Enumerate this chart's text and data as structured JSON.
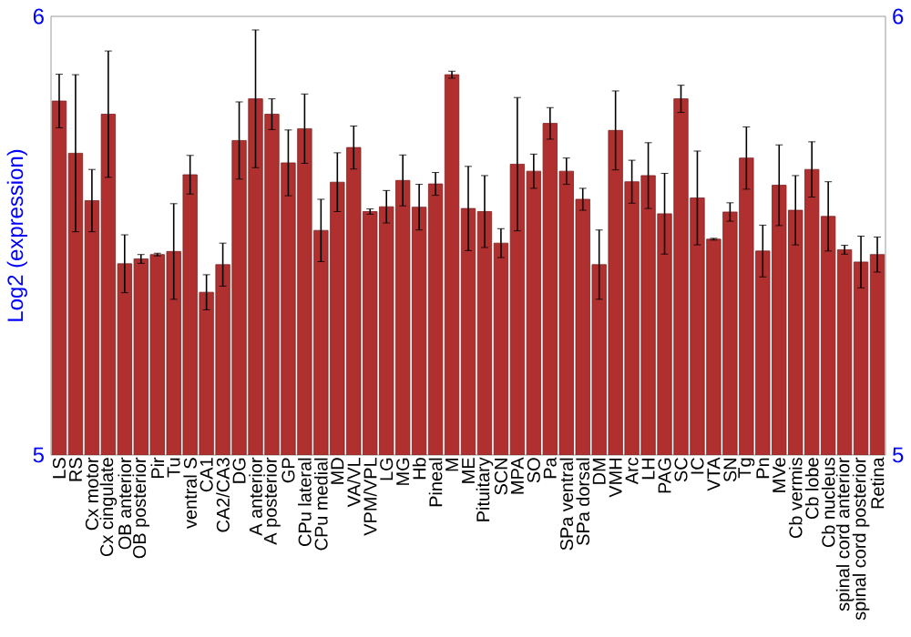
{
  "chart_data": {
    "type": "bar",
    "ylabel": "Log2 (expression)",
    "color": "#b03030",
    "categories": [
      "LS",
      "RS",
      "Cx motor",
      "Cx cingulate",
      "OB anterior",
      "OB posterior",
      "Pir",
      "Tu",
      "ventral S",
      "CA1",
      "CA2/CA3",
      "DG",
      "A anterior",
      "A posterior",
      "GP",
      "CPu lateral",
      "CPu medial",
      "MD",
      "VA/VL",
      "VPM/VPL",
      "LG",
      "MG",
      "Hb",
      "Pineal",
      "M",
      "ME",
      "Pituitary",
      "SCN",
      "MPA",
      "SO",
      "Pa",
      "SPa ventral",
      "SPa dorsal",
      "DM",
      "VMH",
      "Arc",
      "LH",
      "PAG",
      "SC",
      "IC",
      "VTA",
      "SN",
      "Tg",
      "Pn",
      "MVe",
      "Cb vermis",
      "Cb lobe",
      "Cb nucleus",
      "spinal cord anterior",
      "spinal cord posterior",
      "Retina"
    ],
    "values": [
      5.807,
      5.688,
      5.58,
      5.777,
      5.436,
      5.447,
      5.457,
      5.464,
      5.639,
      5.371,
      5.434,
      5.717,
      5.812,
      5.777,
      5.666,
      5.744,
      5.512,
      5.622,
      5.701,
      5.555,
      5.566,
      5.626,
      5.565,
      5.618,
      5.867,
      5.562,
      5.555,
      5.483,
      5.663,
      5.647,
      5.756,
      5.647,
      5.583,
      5.434,
      5.74,
      5.623,
      5.637,
      5.55,
      5.812,
      5.586,
      5.492,
      5.554,
      5.677,
      5.465,
      5.615,
      5.558,
      5.651,
      5.544,
      5.468,
      5.44,
      5.457
    ],
    "errors": [
      0.061,
      0.179,
      0.071,
      0.144,
      0.066,
      0.01,
      0.003,
      0.109,
      0.044,
      0.04,
      0.049,
      0.088,
      0.157,
      0.035,
      0.075,
      0.079,
      0.071,
      0.067,
      0.049,
      0.006,
      0.037,
      0.058,
      0.052,
      0.026,
      0.008,
      0.096,
      0.082,
      0.033,
      0.152,
      0.039,
      0.036,
      0.03,
      0.025,
      0.079,
      0.09,
      0.049,
      0.075,
      0.092,
      0.031,
      0.107,
      0.002,
      0.021,
      0.071,
      0.059,
      0.092,
      0.079,
      0.063,
      0.079,
      0.01,
      0.059,
      0.04
    ],
    "ylim": [
      5,
      6
    ],
    "yticks": [
      5,
      6
    ],
    "y2lim": [
      5,
      6
    ],
    "y2ticks": [
      5,
      6
    ]
  }
}
